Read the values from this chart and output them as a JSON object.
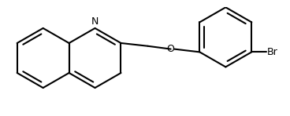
{
  "bg_color": "#ffffff",
  "line_color": "#000000",
  "line_width": 1.5,
  "font_size": 9,
  "atoms": {
    "N_label": "N",
    "Br_label": "Br"
  },
  "figsize": [
    3.68,
    1.48
  ],
  "dpi": 100
}
